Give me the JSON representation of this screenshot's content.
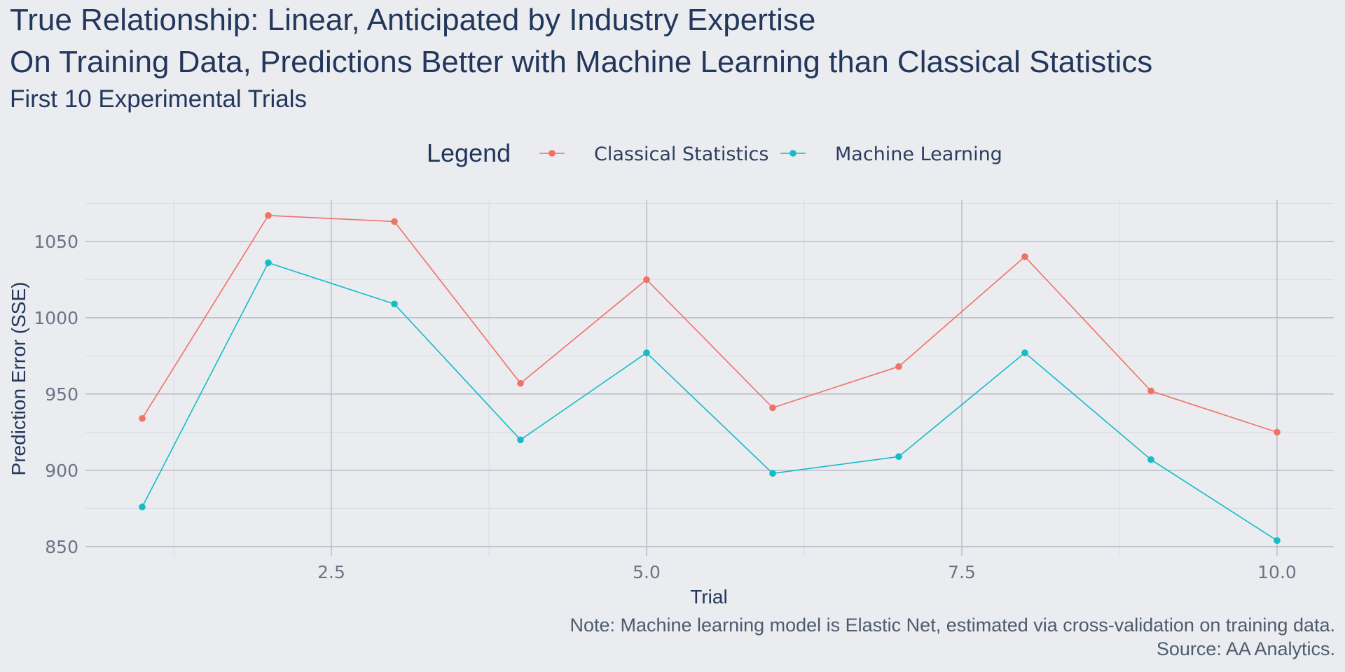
{
  "titles": {
    "title_line_1": "True Relationship: Linear, Anticipated by Industry Expertise",
    "title_line_2": "On Training Data, Predictions Better with Machine Learning than Classical Statistics",
    "subtitle": "First 10 Experimental Trials"
  },
  "legend": {
    "title": "Legend",
    "items": [
      {
        "label": "Classical Statistics",
        "color": "#f07167"
      },
      {
        "label": "Machine Learning",
        "color": "#14bcc6"
      }
    ]
  },
  "caption": {
    "line1": "Note: Machine learning model is Elastic Net, estimated via cross-validation on training data.",
    "line2": "Source: AA Analytics."
  },
  "chart_data": {
    "type": "line",
    "title": "True Relationship: Linear, Anticipated by Industry Expertise",
    "subtitle": "First 10 Experimental Trials",
    "xlabel": "Trial",
    "ylabel": "Prediction Error (SSE)",
    "x": [
      1,
      2,
      3,
      4,
      5,
      6,
      7,
      8,
      9,
      10
    ],
    "xlim": [
      0.55,
      10.45
    ],
    "ylim": [
      844,
      1077
    ],
    "x_ticks": [
      2.5,
      5.0,
      7.5,
      10.0
    ],
    "x_tick_labels": [
      "2.5",
      "5.0",
      "7.5",
      "10.0"
    ],
    "y_ticks": [
      850,
      900,
      950,
      1000,
      1050
    ],
    "y_tick_labels": [
      "850",
      "900",
      "950",
      "1000",
      "1050"
    ],
    "grid": true,
    "legend_position": "top",
    "series": [
      {
        "name": "Classical Statistics",
        "color": "#f07167",
        "values": [
          934,
          1067,
          1063,
          957,
          1025,
          941,
          968,
          1040,
          952,
          925
        ]
      },
      {
        "name": "Machine Learning",
        "color": "#14bcc6",
        "values": [
          876,
          1036,
          1009,
          920,
          977,
          898,
          909,
          977,
          907,
          854
        ]
      }
    ]
  }
}
